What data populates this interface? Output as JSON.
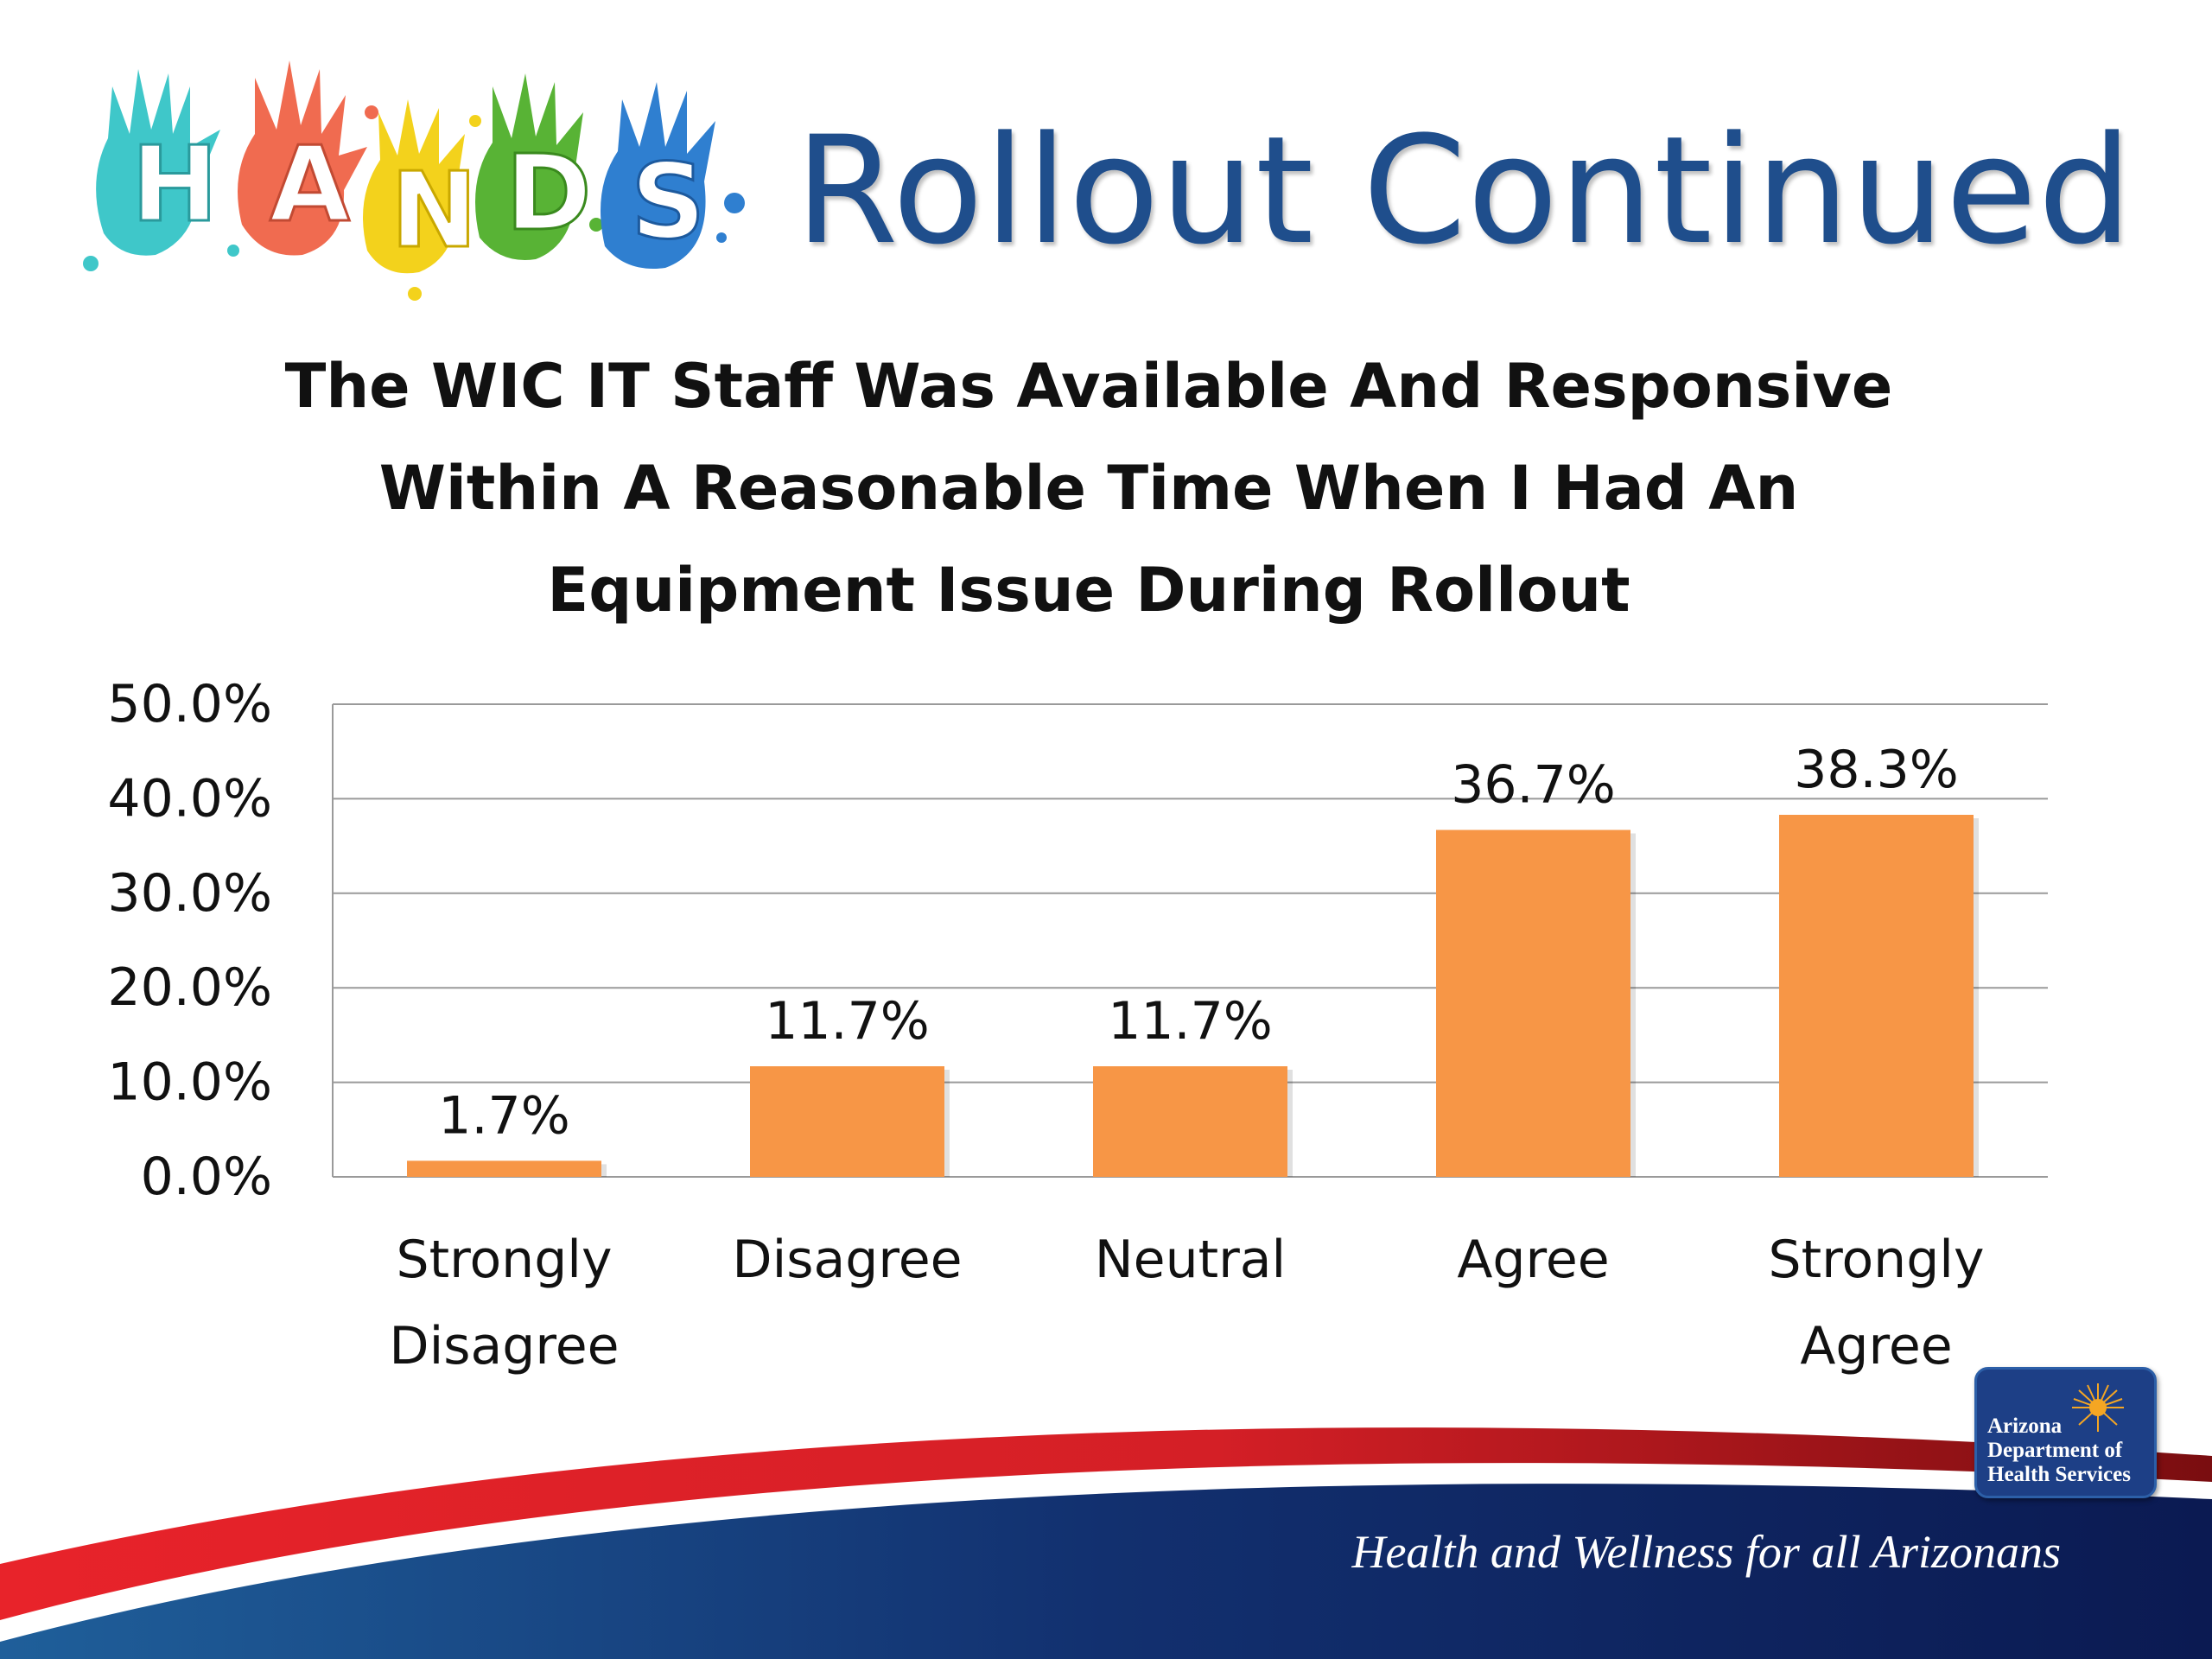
{
  "logo": {
    "letters": [
      "H",
      "A",
      "N",
      "D",
      "S"
    ],
    "colors": [
      "#3fc7c9",
      "#f06b50",
      "#f3d21c",
      "#58b335",
      "#2f7fd0"
    ]
  },
  "slide": {
    "title": "Rollout Continued"
  },
  "chart_data": {
    "type": "bar",
    "title_lines": [
      "The WIC IT Staff Was Available And Responsive",
      "Within A Reasonable Time When I Had An",
      "Equipment Issue During Rollout"
    ],
    "categories": [
      [
        "Strongly",
        "Disagree"
      ],
      [
        "Disagree"
      ],
      [
        "Neutral"
      ],
      [
        "Agree"
      ],
      [
        "Strongly",
        "Agree"
      ]
    ],
    "values": [
      1.7,
      11.7,
      11.7,
      36.7,
      38.3
    ],
    "value_labels": [
      "1.7%",
      "11.7%",
      "11.7%",
      "36.7%",
      "38.3%"
    ],
    "yticks": [
      "0.0%",
      "10.0%",
      "20.0%",
      "30.0%",
      "40.0%",
      "50.0%"
    ],
    "ylim": [
      0,
      50
    ],
    "grid": true,
    "bar_color": "#f79646"
  },
  "footer": {
    "tagline": "Health and Wellness for all Arizonans",
    "badge_lines": [
      "Arizona",
      "Department of",
      "Health Services"
    ]
  }
}
